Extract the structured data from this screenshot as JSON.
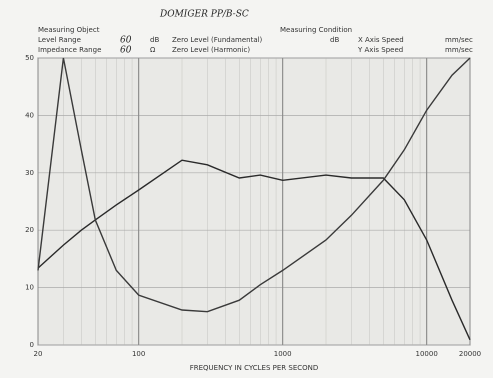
{
  "chart_data": {
    "type": "line",
    "title": "DOMIGER PP/B-SC",
    "annotations": [
      "Measuring Object",
      "Measuring Condition",
      "Level Range",
      "60",
      "dB",
      "Zero Level (Fundamental)",
      "dB",
      "X Axis Speed",
      "mm/sec",
      "Impedance Range",
      "60",
      "Ω",
      "Zero Level (Harmonic)",
      "Y Axis Speed",
      "mm/sec"
    ],
    "xlabel": "FREQUENCY IN CYCLES PER SECOND",
    "x": [
      20,
      30,
      40,
      50,
      70,
      100,
      200,
      300,
      500,
      700,
      1000,
      2000,
      3000,
      5000,
      7000,
      10000,
      15000,
      20000
    ],
    "series": [
      {
        "color": "#2a2a2a",
        "values": [
          13.4,
          17.4,
          20,
          21.8,
          24.4,
          27,
          32.2,
          31.4,
          29.1,
          29.6,
          28.7,
          29.6,
          29.1,
          29.1,
          25.3,
          18.3,
          7.8,
          0.9
        ]
      },
      {
        "color": "#3a3a3a",
        "values": [
          13,
          50,
          34,
          21.8,
          13,
          8.7,
          6.1,
          5.8,
          7.8,
          10.5,
          13,
          18.3,
          22.6,
          28.7,
          34,
          40.9,
          47,
          50
        ]
      }
    ],
    "xlim": [
      20,
      20000
    ],
    "xticks": [
      20,
      100,
      1000,
      10000,
      20000
    ],
    "log_x": true,
    "ylim": [
      0,
      50
    ],
    "yticks": [
      0,
      10,
      20,
      30,
      40,
      50
    ],
    "grid": true
  }
}
